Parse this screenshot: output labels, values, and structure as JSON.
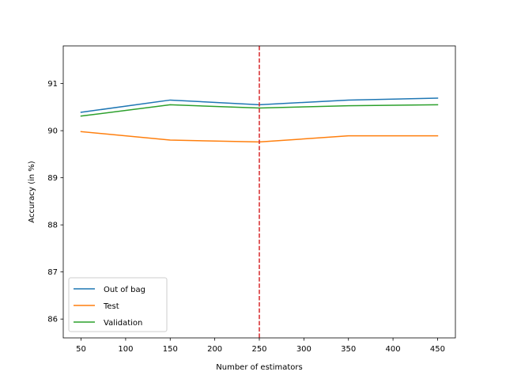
{
  "chart_data": {
    "type": "line",
    "xlabel": "Number of estimators",
    "ylabel": "Accuracy (in %)",
    "xlim": [
      30,
      470
    ],
    "ylim": [
      85.6,
      91.8
    ],
    "xticks": [
      50,
      100,
      150,
      200,
      250,
      300,
      350,
      400,
      450
    ],
    "yticks": [
      86,
      87,
      88,
      89,
      90,
      91
    ],
    "x": [
      50,
      150,
      250,
      350,
      450
    ],
    "series": [
      {
        "name": "Out of bag",
        "color": "#1f77b4",
        "values": [
          90.39,
          90.65,
          90.55,
          90.65,
          90.69
        ]
      },
      {
        "name": "Test",
        "color": "#ff7f0e",
        "values": [
          89.98,
          89.8,
          89.76,
          89.89,
          89.89
        ]
      },
      {
        "name": "Validation",
        "color": "#2ca02c",
        "values": [
          90.31,
          90.55,
          90.48,
          90.53,
          90.55
        ]
      }
    ],
    "reference_line": {
      "x": 250,
      "color": "#d62728",
      "style": "dashed"
    },
    "legend_position": "lower-left",
    "grid": false
  }
}
